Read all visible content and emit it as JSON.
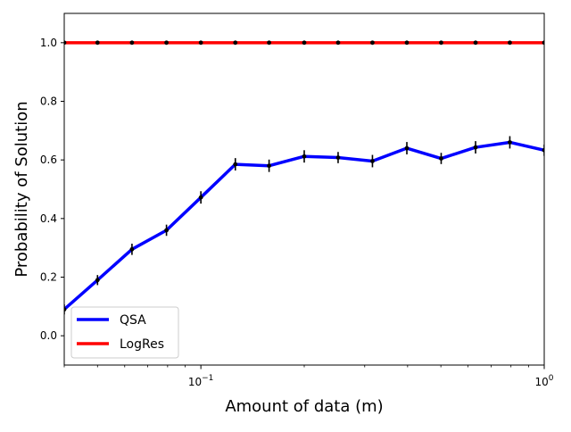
{
  "chart_data": {
    "type": "line",
    "xlabel": "Amount of data (m)",
    "ylabel": "Probability of Solution",
    "xscale": "log",
    "xlim": [
      0.04,
      1.0
    ],
    "ylim": [
      -0.1,
      1.1
    ],
    "yticks": [
      0.0,
      0.2,
      0.4,
      0.6,
      0.8,
      1.0
    ],
    "ytick_labels": [
      "0.0",
      "0.2",
      "0.4",
      "0.6",
      "0.8",
      "1.0"
    ],
    "xticks": [
      {
        "value": 0.1,
        "base": "10",
        "exp": "−1"
      },
      {
        "value": 1.0,
        "base": "10",
        "exp": "0"
      }
    ],
    "grid": false,
    "legend_position": "lower-left",
    "x": [
      0.04,
      0.05,
      0.063,
      0.0794,
      0.1,
      0.126,
      0.158,
      0.2,
      0.251,
      0.316,
      0.398,
      0.501,
      0.631,
      0.794,
      1.0
    ],
    "series": [
      {
        "name": "QSA",
        "color": "#0000ff",
        "values": [
          0.09,
          0.19,
          0.295,
          0.36,
          0.472,
          0.585,
          0.58,
          0.612,
          0.608,
          0.596,
          0.64,
          0.605,
          0.643,
          0.66,
          0.633
        ],
        "errors": [
          0.008,
          0.008,
          0.01,
          0.01,
          0.012,
          0.012,
          0.012,
          0.012,
          0.01,
          0.012,
          0.012,
          0.01,
          0.012,
          0.012,
          0.01
        ]
      },
      {
        "name": "LogRes",
        "color": "#ff0000",
        "values": [
          1.0,
          1.0,
          1.0,
          1.0,
          1.0,
          1.0,
          1.0,
          1.0,
          1.0,
          1.0,
          1.0,
          1.0,
          1.0,
          1.0,
          1.0
        ],
        "errors": [
          0,
          0,
          0,
          0,
          0,
          0,
          0,
          0,
          0,
          0,
          0,
          0,
          0,
          0,
          0
        ]
      }
    ]
  }
}
